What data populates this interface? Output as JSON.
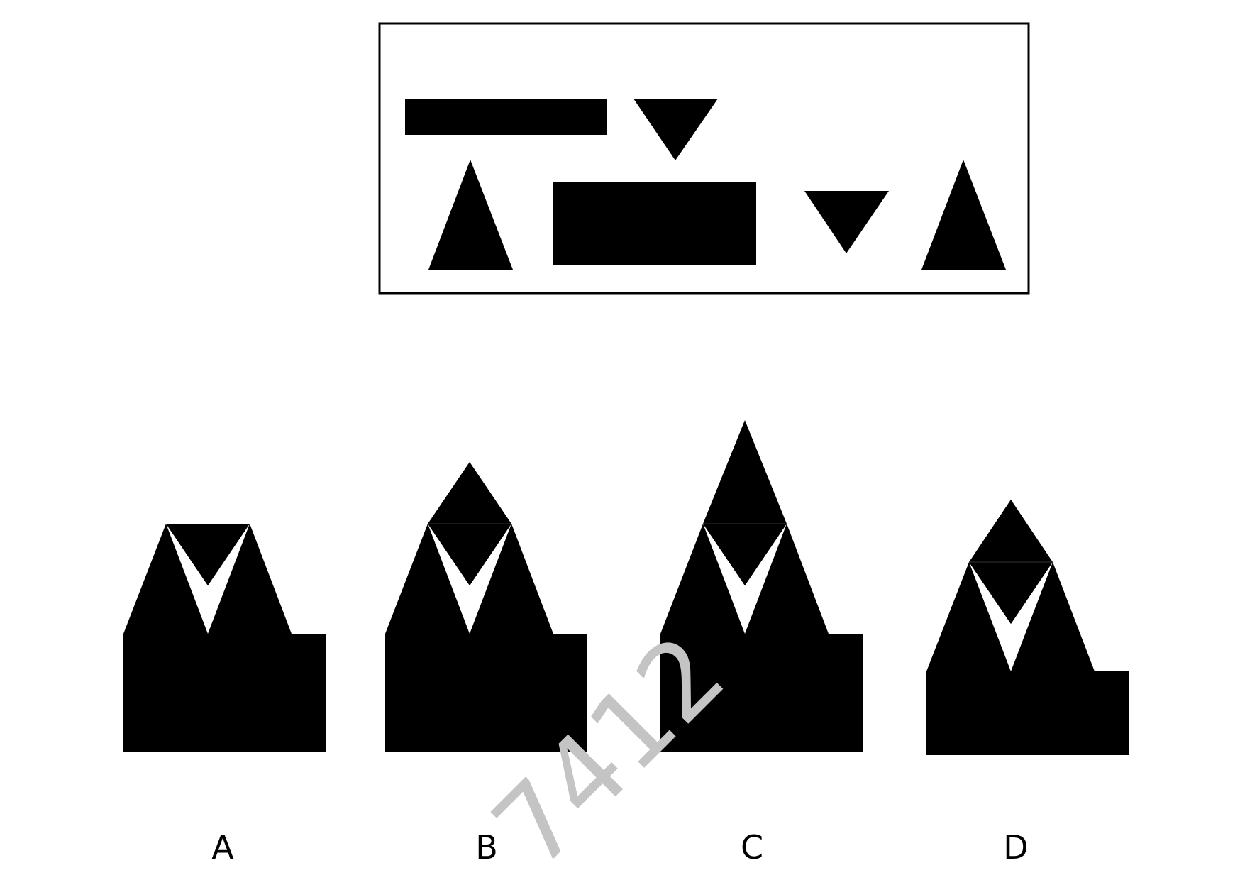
{
  "puzzle": {
    "question_panel": {
      "shapes": [
        "wide-bar",
        "inverted-triangle",
        "upright-triangle",
        "tall-rectangle",
        "inverted-triangle",
        "upright-triangle"
      ]
    },
    "options": [
      {
        "label": "A"
      },
      {
        "label": "B"
      },
      {
        "label": "C"
      },
      {
        "label": "D"
      }
    ],
    "watermark": "7412"
  },
  "colors": {
    "shape": "#000000",
    "background": "#ffffff",
    "watermark": "#c4c4c4"
  }
}
